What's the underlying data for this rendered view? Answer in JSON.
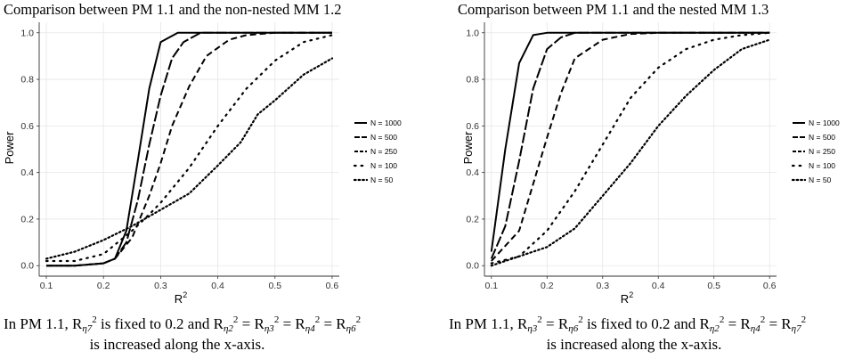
{
  "chart_data": [
    {
      "type": "line",
      "title": "Comparison between PM 1.1 and the non-nested MM 1.2",
      "xlabel": "R",
      "xlabel_sup": "2",
      "ylabel": "Power",
      "xlim": [
        0.1,
        0.6
      ],
      "ylim": [
        0.0,
        1.0
      ],
      "xticks": [
        0.1,
        0.2,
        0.3,
        0.4,
        0.5,
        0.6
      ],
      "yticks": [
        0.0,
        0.2,
        0.4,
        0.6,
        0.8,
        1.0
      ],
      "grid": true,
      "legend_position": "right",
      "series": [
        {
          "name": "N = 1000",
          "linetype": "solid",
          "points": [
            [
              0.1,
              0.0
            ],
            [
              0.15,
              0.0
            ],
            [
              0.2,
              0.01
            ],
            [
              0.22,
              0.03
            ],
            [
              0.24,
              0.15
            ],
            [
              0.26,
              0.45
            ],
            [
              0.28,
              0.76
            ],
            [
              0.3,
              0.96
            ],
            [
              0.33,
              1.0
            ],
            [
              0.4,
              1.0
            ],
            [
              0.5,
              1.0
            ],
            [
              0.6,
              1.0
            ]
          ]
        },
        {
          "name": "N = 500",
          "linetype": "longdash",
          "points": [
            [
              0.1,
              0.0
            ],
            [
              0.15,
              0.0
            ],
            [
              0.2,
              0.01
            ],
            [
              0.22,
              0.03
            ],
            [
              0.24,
              0.1
            ],
            [
              0.26,
              0.28
            ],
            [
              0.28,
              0.52
            ],
            [
              0.3,
              0.73
            ],
            [
              0.32,
              0.89
            ],
            [
              0.34,
              0.96
            ],
            [
              0.37,
              1.0
            ],
            [
              0.45,
              1.0
            ],
            [
              0.6,
              1.0
            ]
          ]
        },
        {
          "name": "N = 250",
          "linetype": "dashed",
          "points": [
            [
              0.1,
              0.0
            ],
            [
              0.15,
              0.0
            ],
            [
              0.2,
              0.01
            ],
            [
              0.22,
              0.03
            ],
            [
              0.25,
              0.12
            ],
            [
              0.28,
              0.3
            ],
            [
              0.3,
              0.44
            ],
            [
              0.32,
              0.6
            ],
            [
              0.35,
              0.77
            ],
            [
              0.38,
              0.9
            ],
            [
              0.42,
              0.97
            ],
            [
              0.45,
              0.99
            ],
            [
              0.5,
              1.0
            ],
            [
              0.6,
              1.0
            ]
          ]
        },
        {
          "name": "N = 100",
          "linetype": "dotted",
          "points": [
            [
              0.1,
              0.02
            ],
            [
              0.15,
              0.02
            ],
            [
              0.2,
              0.05
            ],
            [
              0.25,
              0.15
            ],
            [
              0.28,
              0.22
            ],
            [
              0.3,
              0.27
            ],
            [
              0.35,
              0.42
            ],
            [
              0.4,
              0.6
            ],
            [
              0.45,
              0.76
            ],
            [
              0.5,
              0.88
            ],
            [
              0.55,
              0.96
            ],
            [
              0.6,
              0.99
            ]
          ]
        },
        {
          "name": "N = 50",
          "linetype": "densedot",
          "points": [
            [
              0.1,
              0.03
            ],
            [
              0.15,
              0.06
            ],
            [
              0.2,
              0.11
            ],
            [
              0.25,
              0.17
            ],
            [
              0.3,
              0.24
            ],
            [
              0.35,
              0.31
            ],
            [
              0.4,
              0.43
            ],
            [
              0.44,
              0.53
            ],
            [
              0.47,
              0.65
            ],
            [
              0.5,
              0.71
            ],
            [
              0.55,
              0.82
            ],
            [
              0.6,
              0.89
            ]
          ]
        }
      ],
      "caption_line1": "In PM 1.1, R",
      "caption_line2": "is increased along the x-axis."
    },
    {
      "type": "line",
      "title": "Comparison between PM 1.1 and the nested MM 1.3",
      "xlabel": "R",
      "xlabel_sup": "2",
      "ylabel": "Power",
      "xlim": [
        0.1,
        0.6
      ],
      "ylim": [
        0.0,
        1.0
      ],
      "xticks": [
        0.1,
        0.2,
        0.3,
        0.4,
        0.5,
        0.6
      ],
      "yticks": [
        0.0,
        0.2,
        0.4,
        0.6,
        0.8,
        1.0
      ],
      "grid": true,
      "legend_position": "right",
      "series": [
        {
          "name": "N = 1000",
          "linetype": "solid",
          "points": [
            [
              0.1,
              0.06
            ],
            [
              0.125,
              0.5
            ],
            [
              0.15,
              0.87
            ],
            [
              0.175,
              0.99
            ],
            [
              0.2,
              1.0
            ],
            [
              0.3,
              1.0
            ],
            [
              0.4,
              1.0
            ],
            [
              0.5,
              1.0
            ],
            [
              0.6,
              1.0
            ]
          ]
        },
        {
          "name": "N = 500",
          "linetype": "longdash",
          "points": [
            [
              0.1,
              0.03
            ],
            [
              0.125,
              0.17
            ],
            [
              0.15,
              0.45
            ],
            [
              0.175,
              0.76
            ],
            [
              0.2,
              0.93
            ],
            [
              0.225,
              0.98
            ],
            [
              0.25,
              1.0
            ],
            [
              0.3,
              1.0
            ],
            [
              0.4,
              1.0
            ],
            [
              0.6,
              1.0
            ]
          ]
        },
        {
          "name": "N = 250",
          "linetype": "dashed",
          "points": [
            [
              0.1,
              0.02
            ],
            [
              0.15,
              0.15
            ],
            [
              0.2,
              0.55
            ],
            [
              0.225,
              0.74
            ],
            [
              0.25,
              0.89
            ],
            [
              0.3,
              0.97
            ],
            [
              0.35,
              0.995
            ],
            [
              0.4,
              1.0
            ],
            [
              0.6,
              1.0
            ]
          ]
        },
        {
          "name": "N = 100",
          "linetype": "dotted",
          "points": [
            [
              0.1,
              0.01
            ],
            [
              0.15,
              0.04
            ],
            [
              0.2,
              0.15
            ],
            [
              0.25,
              0.32
            ],
            [
              0.3,
              0.52
            ],
            [
              0.35,
              0.72
            ],
            [
              0.4,
              0.85
            ],
            [
              0.45,
              0.93
            ],
            [
              0.5,
              0.97
            ],
            [
              0.55,
              0.99
            ],
            [
              0.6,
              1.0
            ]
          ]
        },
        {
          "name": "N = 50",
          "linetype": "densedot",
          "points": [
            [
              0.1,
              0.0
            ],
            [
              0.15,
              0.04
            ],
            [
              0.2,
              0.08
            ],
            [
              0.25,
              0.16
            ],
            [
              0.3,
              0.3
            ],
            [
              0.35,
              0.44
            ],
            [
              0.4,
              0.6
            ],
            [
              0.45,
              0.73
            ],
            [
              0.5,
              0.84
            ],
            [
              0.55,
              0.93
            ],
            [
              0.6,
              0.97
            ]
          ]
        }
      ],
      "caption_line1": "In PM 1.1, R",
      "caption_line2": "is increased along the x-axis."
    }
  ]
}
